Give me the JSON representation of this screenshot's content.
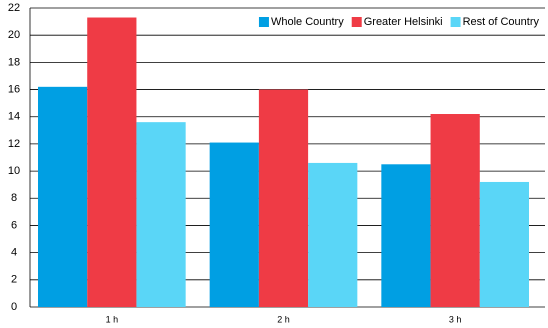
{
  "chart_data": {
    "type": "bar",
    "categories": [
      "1 h",
      "2 h",
      "3 h"
    ],
    "series": [
      {
        "name": "Whole Country",
        "color": "#009fe3",
        "values": [
          16.2,
          12.1,
          10.5
        ]
      },
      {
        "name": "Greater Helsinki",
        "color": "#ef3b45",
        "values": [
          21.3,
          16.0,
          14.2
        ]
      },
      {
        "name": "Rest of Country",
        "color": "#5ad6f7",
        "values": [
          13.6,
          10.6,
          9.2
        ]
      }
    ],
    "ylim": [
      0,
      22
    ],
    "yticks": [
      0,
      2,
      4,
      6,
      8,
      10,
      12,
      14,
      16,
      18,
      20,
      22
    ],
    "grid": true,
    "legend": "top-right"
  }
}
